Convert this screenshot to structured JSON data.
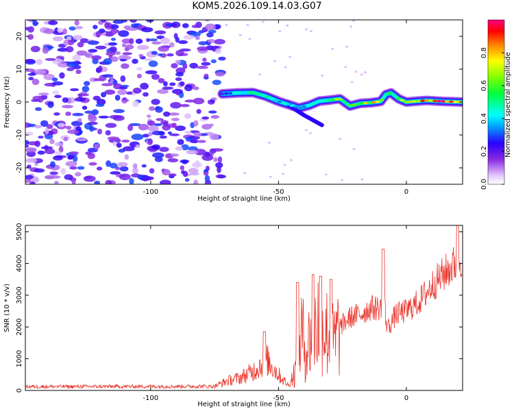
{
  "title": "KOM5.2026.109.14.03.G07",
  "chart_data": [
    {
      "type": "heatmap",
      "xlabel": "Height of straight line (km)",
      "ylabel": "Frequency (Hz)",
      "xlim": [
        -149,
        22
      ],
      "ylim": [
        -25,
        25
      ],
      "x_ticks": [
        -100,
        -50,
        0
      ],
      "y_ticks": [
        -20,
        -10,
        0,
        10,
        20
      ],
      "colorbar": {
        "label": "Normalized spectral amplitude",
        "range": [
          0,
          1
        ],
        "ticks": [
          0.0,
          0.2,
          0.4,
          0.6,
          0.8
        ]
      },
      "noise_region": {
        "x_range": [
          -149,
          -72
        ],
        "y_range": [
          -25,
          25
        ],
        "amplitude": [
          0.05,
          0.3
        ]
      },
      "signal_ridge": {
        "x": [
          -72,
          -66,
          -60,
          -55,
          -50,
          -46,
          -42,
          -38,
          -34,
          -30,
          -26,
          -22,
          -18,
          -14,
          -10,
          -8,
          -6,
          -3,
          0,
          3,
          8,
          14,
          22
        ],
        "frequency": [
          2.5,
          2.8,
          2.9,
          1.8,
          0.2,
          -0.8,
          -1.8,
          -1.0,
          0.3,
          0.6,
          1.0,
          -1.2,
          -0.4,
          -0.2,
          0.2,
          2.3,
          2.8,
          1.0,
          0.0,
          0.2,
          0.5,
          0.2,
          0.0
        ],
        "amplitude": [
          0.2,
          0.45,
          0.55,
          0.5,
          0.4,
          0.45,
          0.3,
          0.4,
          0.5,
          0.55,
          0.7,
          0.65,
          0.7,
          0.75,
          0.8,
          0.6,
          0.55,
          0.65,
          0.75,
          0.85,
          0.9,
          0.95,
          0.97
        ]
      }
    },
    {
      "type": "line",
      "xlabel": "Height of straight line (km)",
      "ylabel": "SNR (10 * v/v)",
      "xlim": [
        -149,
        22
      ],
      "ylim": [
        0,
        5200
      ],
      "x_ticks": [
        -100,
        -50,
        0
      ],
      "y_ticks": [
        0,
        1000,
        2000,
        3000,
        4000,
        5000
      ],
      "color": "#e8332a",
      "baseline": {
        "x": [
          -149,
          -75,
          -70,
          -65,
          -60,
          -57,
          -55,
          -50,
          -46,
          -43,
          -41,
          -39,
          -37,
          -35,
          -32,
          -30,
          -28,
          -26,
          -22,
          -18,
          -14,
          -10,
          -9,
          -8,
          -7,
          -4,
          0,
          5,
          10,
          15,
          22
        ],
        "snr": [
          120,
          130,
          300,
          400,
          600,
          800,
          1000,
          500,
          150,
          700,
          1800,
          1300,
          1800,
          2200,
          2000,
          1600,
          1500,
          2000,
          2300,
          2400,
          2600,
          2600,
          3300,
          2200,
          2000,
          2400,
          2500,
          2800,
          3300,
          3700,
          4200
        ]
      },
      "spikes": [
        {
          "x": -55.5,
          "snr": 1850
        },
        {
          "x": -42.5,
          "snr": 3400
        },
        {
          "x": -36.5,
          "snr": 3650
        },
        {
          "x": -33.5,
          "snr": 3600
        },
        {
          "x": -29.5,
          "snr": 3500
        },
        {
          "x": -9,
          "snr": 4450
        },
        {
          "x": 20,
          "snr": 5200
        }
      ]
    }
  ]
}
